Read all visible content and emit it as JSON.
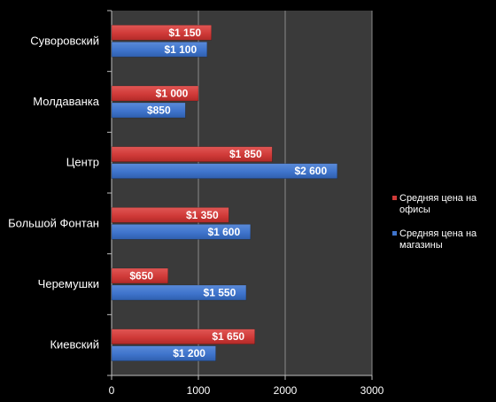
{
  "chart_data": {
    "type": "bar",
    "orientation": "horizontal",
    "categories": [
      "Суворовский",
      "Молдаванка",
      "Центр",
      "Большой Фонтан",
      "Черемушки",
      "Киевский"
    ],
    "series": [
      {
        "name": "Средняя цена на офисы",
        "color": "#d03a38",
        "values": [
          1150,
          1000,
          1850,
          1350,
          650,
          1650
        ],
        "labels": [
          "$1 150",
          "$1 000",
          "$1 850",
          "$1 350",
          "$650",
          "$1 650"
        ]
      },
      {
        "name": "Средняя цена на магазины",
        "color": "#3f74cc",
        "values": [
          1100,
          850,
          2600,
          1600,
          1550,
          1200
        ],
        "labels": [
          "$1 100",
          "$850",
          "$2 600",
          "$1 600",
          "$1 550",
          "$1 200"
        ]
      }
    ],
    "xlim": [
      0,
      3000
    ],
    "xticks": [
      0,
      1000,
      2000,
      3000
    ],
    "xticklabels": [
      "0",
      "1000",
      "2000",
      "3000"
    ],
    "grid": true,
    "plot_background": "#3a3a3a",
    "grid_color": "#8a8a8a",
    "legend_position": "right"
  }
}
